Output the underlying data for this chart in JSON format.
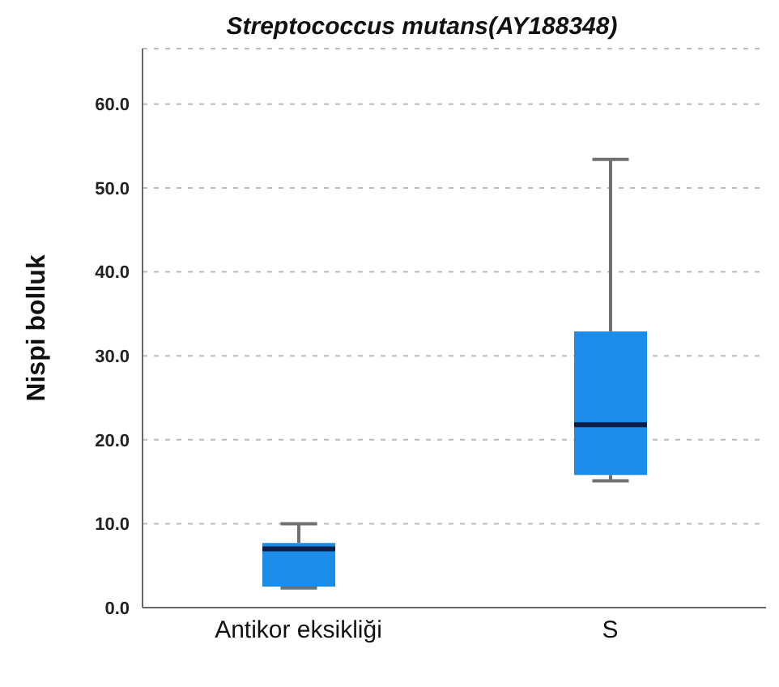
{
  "chart_data": {
    "type": "box",
    "title": "Streptococcus mutans(AY188348)",
    "ylabel": "Nispi bolluk",
    "categories": [
      "Antikor eksikliği",
      "S"
    ],
    "boxes": [
      {
        "low": 2.35,
        "q1": 2.5,
        "median": 7.0,
        "q3": 7.7,
        "high": 10.0
      },
      {
        "low": 15.1,
        "q1": 15.8,
        "median": 21.8,
        "q3": 32.9,
        "high": 53.4
      }
    ],
    "color": "#1b8de8",
    "ylim": [
      0,
      66.6
    ],
    "yticks": [
      {
        "value": 0,
        "label": "0.0"
      },
      {
        "value": 10,
        "label": "10.0"
      },
      {
        "value": 20,
        "label": "20.0"
      },
      {
        "value": 30,
        "label": "30.0"
      },
      {
        "value": 40,
        "label": "40.0"
      },
      {
        "value": 50,
        "label": "50.0"
      },
      {
        "value": 60,
        "label": "60.0"
      }
    ],
    "grid": "y"
  }
}
